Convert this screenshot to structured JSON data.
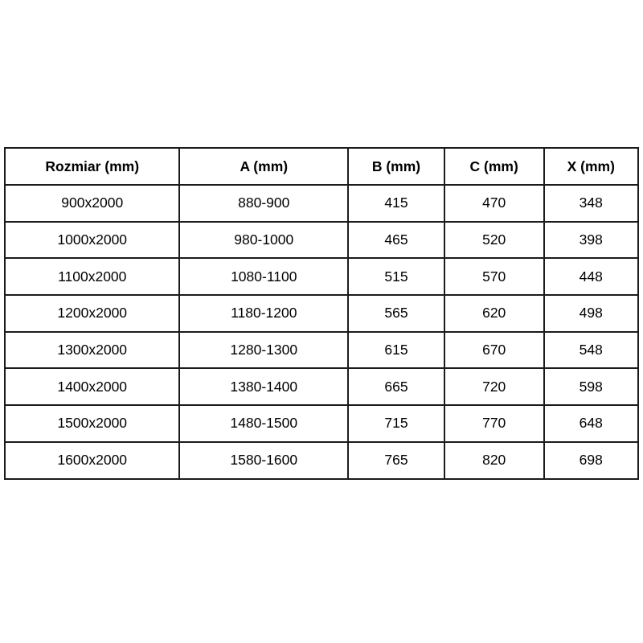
{
  "table": {
    "border_color": "#1b1b1b",
    "text_color": "#000000",
    "columns": [
      "Rozmiar (mm)",
      "A (mm)",
      "B (mm)",
      "C (mm)",
      "X (mm)"
    ],
    "rows": [
      [
        "900x2000",
        "880-900",
        "415",
        "470",
        "348"
      ],
      [
        "1000x2000",
        "980-1000",
        "465",
        "520",
        "398"
      ],
      [
        "1100x2000",
        "1080-1100",
        "515",
        "570",
        "448"
      ],
      [
        "1200x2000",
        "1180-1200",
        "565",
        "620",
        "498"
      ],
      [
        "1300x2000",
        "1280-1300",
        "615",
        "670",
        "548"
      ],
      [
        "1400x2000",
        "1380-1400",
        "665",
        "720",
        "598"
      ],
      [
        "1500x2000",
        "1480-1500",
        "715",
        "770",
        "648"
      ],
      [
        "1600x2000",
        "1580-1600",
        "765",
        "820",
        "698"
      ]
    ]
  }
}
